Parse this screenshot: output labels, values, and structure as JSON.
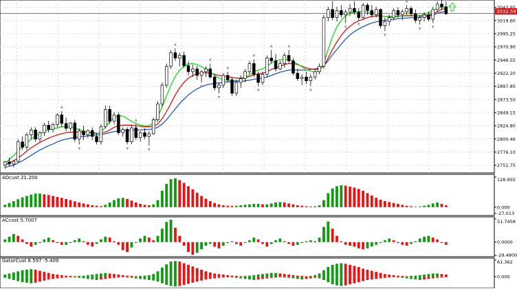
{
  "window": {
    "current_price": "3032.58",
    "colors": {
      "bull_candle": "#ffffff",
      "bear_candle": "#000000",
      "jaw": "#2255cc",
      "teeth": "#dd1111",
      "lips": "#11dd11",
      "price_line": "#dd1111",
      "osc_up": "#119911",
      "osc_down": "#ee1111",
      "arrow": "#22cc22"
    },
    "icons": [
      "fractal-up-arrow-icon",
      "fractal-down-arrow-icon",
      "buy-arrow-icon"
    ]
  },
  "main_axis": {
    "ticks": [
      "3043.95",
      "3019.60",
      "2995.25",
      "2970.90",
      "2946.55",
      "2922.20",
      "2897.85",
      "2873.50",
      "2849.15",
      "2824.80",
      "2800.46",
      "2776.10",
      "2751.75"
    ]
  },
  "panels": [
    {
      "id": "ac-osc",
      "label": "AOcust 21.200",
      "ticks": [
        "128.955",
        "0.000",
        "-27.013"
      ]
    },
    {
      "id": "ac-cust",
      "label": "ACcust 5.7007",
      "ticks": [
        "51.7458",
        "0.0000",
        "-29.4800"
      ]
    },
    {
      "id": "gator",
      "label": "GatorCust 8.597 -5.409",
      "ticks": [
        "61.362",
        "0.000"
      ]
    }
  ],
  "chart_data": {
    "type": "candlestick",
    "price_range": [
      2740,
      3055
    ],
    "candles": [
      [
        2752,
        2760,
        2745,
        2758
      ],
      [
        2758,
        2766,
        2750,
        2754
      ],
      [
        2754,
        2762,
        2748,
        2759
      ],
      [
        2759,
        2800,
        2757,
        2795
      ],
      [
        2795,
        2805,
        2780,
        2785
      ],
      [
        2785,
        2812,
        2780,
        2808
      ],
      [
        2808,
        2822,
        2800,
        2817
      ],
      [
        2817,
        2822,
        2795,
        2800
      ],
      [
        2800,
        2815,
        2795,
        2812
      ],
      [
        2812,
        2830,
        2806,
        2826
      ],
      [
        2826,
        2834,
        2812,
        2818
      ],
      [
        2818,
        2830,
        2812,
        2827
      ],
      [
        2827,
        2848,
        2822,
        2845
      ],
      [
        2845,
        2852,
        2822,
        2829
      ],
      [
        2829,
        2840,
        2815,
        2820
      ],
      [
        2820,
        2832,
        2815,
        2830
      ],
      [
        2830,
        2836,
        2795,
        2800
      ],
      [
        2800,
        2820,
        2790,
        2815
      ],
      [
        2815,
        2825,
        2798,
        2808
      ],
      [
        2808,
        2818,
        2802,
        2816
      ],
      [
        2816,
        2822,
        2798,
        2805
      ],
      [
        2805,
        2812,
        2790,
        2795
      ],
      [
        2795,
        2828,
        2790,
        2823
      ],
      [
        2823,
        2862,
        2820,
        2855
      ],
      [
        2855,
        2862,
        2828,
        2833
      ],
      [
        2833,
        2850,
        2828,
        2845
      ],
      [
        2845,
        2850,
        2808,
        2812
      ],
      [
        2812,
        2822,
        2805,
        2818
      ],
      [
        2818,
        2822,
        2790,
        2795
      ],
      [
        2795,
        2825,
        2791,
        2821
      ],
      [
        2821,
        2828,
        2798,
        2803
      ],
      [
        2803,
        2815,
        2795,
        2812
      ],
      [
        2812,
        2820,
        2800,
        2805
      ],
      [
        2805,
        2815,
        2788,
        2810
      ],
      [
        2810,
        2840,
        2808,
        2836
      ],
      [
        2836,
        2870,
        2832,
        2865
      ],
      [
        2865,
        2905,
        2860,
        2900
      ],
      [
        2900,
        2940,
        2895,
        2935
      ],
      [
        2935,
        2965,
        2930,
        2960
      ],
      [
        2960,
        2968,
        2945,
        2950
      ],
      [
        2950,
        2960,
        2935,
        2955
      ],
      [
        2955,
        2962,
        2932,
        2936
      ],
      [
        2936,
        2944,
        2918,
        2925
      ],
      [
        2925,
        2938,
        2915,
        2930
      ],
      [
        2930,
        2936,
        2910,
        2918
      ],
      [
        2918,
        2928,
        2905,
        2925
      ],
      [
        2925,
        2935,
        2915,
        2930
      ],
      [
        2930,
        2940,
        2912,
        2915
      ],
      [
        2915,
        2920,
        2890,
        2895
      ],
      [
        2895,
        2905,
        2885,
        2900
      ],
      [
        2900,
        2922,
        2895,
        2918
      ],
      [
        2918,
        2925,
        2905,
        2910
      ],
      [
        2910,
        2915,
        2880,
        2885
      ],
      [
        2885,
        2910,
        2880,
        2905
      ],
      [
        2905,
        2918,
        2895,
        2912
      ],
      [
        2912,
        2930,
        2905,
        2925
      ],
      [
        2925,
        2945,
        2920,
        2940
      ],
      [
        2940,
        2948,
        2915,
        2920
      ],
      [
        2920,
        2925,
        2898,
        2905
      ],
      [
        2905,
        2925,
        2900,
        2920
      ],
      [
        2920,
        2955,
        2915,
        2950
      ],
      [
        2950,
        2965,
        2940,
        2945
      ],
      [
        2945,
        2958,
        2925,
        2930
      ],
      [
        2930,
        2945,
        2928,
        2940
      ],
      [
        2940,
        2960,
        2932,
        2955
      ],
      [
        2955,
        2965,
        2940,
        2945
      ],
      [
        2945,
        2950,
        2918,
        2922
      ],
      [
        2922,
        2930,
        2908,
        2912
      ],
      [
        2912,
        2920,
        2900,
        2915
      ],
      [
        2915,
        2925,
        2902,
        2908
      ],
      [
        2908,
        2920,
        2898,
        2915
      ],
      [
        2915,
        2930,
        2910,
        2925
      ],
      [
        2925,
        2940,
        2920,
        2935
      ],
      [
        2935,
        3030,
        2930,
        3025
      ],
      [
        3025,
        3045,
        3018,
        3040
      ],
      [
        3040,
        3055,
        3020,
        3025
      ],
      [
        3025,
        3045,
        3018,
        3038
      ],
      [
        3038,
        3048,
        3025,
        3030
      ],
      [
        3030,
        3040,
        3015,
        3035
      ],
      [
        3035,
        3050,
        3028,
        3042
      ],
      [
        3042,
        3055,
        3030,
        3035
      ],
      [
        3035,
        3042,
        3020,
        3025
      ],
      [
        3025,
        3052,
        3022,
        3048
      ],
      [
        3048,
        3052,
        3030,
        3038
      ],
      [
        3038,
        3048,
        3025,
        3030
      ],
      [
        3030,
        3045,
        3025,
        3040
      ],
      [
        3040,
        3042,
        3005,
        3010
      ],
      [
        3010,
        3025,
        3000,
        3018
      ],
      [
        3018,
        3030,
        3010,
        3025
      ],
      [
        3025,
        3042,
        3020,
        3038
      ],
      [
        3038,
        3044,
        3025,
        3030
      ],
      [
        3030,
        3040,
        3020,
        3036
      ],
      [
        3036,
        3048,
        3030,
        3042
      ],
      [
        3042,
        3046,
        3028,
        3032
      ],
      [
        3032,
        3040,
        3015,
        3020
      ],
      [
        3020,
        3030,
        3012,
        3025
      ],
      [
        3025,
        3035,
        3018,
        3030
      ],
      [
        3030,
        3036,
        3018,
        3022
      ],
      [
        3022,
        3045,
        3015,
        3040
      ],
      [
        3040,
        3055,
        3035,
        3050
      ],
      [
        3050,
        3058,
        3040,
        3045
      ],
      [
        3045,
        3055,
        3030,
        3032
      ]
    ],
    "jaw": [
      2748,
      2750,
      2752,
      2756,
      2760,
      2765,
      2770,
      2775,
      2780,
      2784,
      2788,
      2791,
      2795,
      2798,
      2800,
      2802,
      2803,
      2804,
      2805,
      2806,
      2807,
      2808,
      2808,
      2810,
      2812,
      2814,
      2815,
      2816,
      2816,
      2817,
      2817,
      2817,
      2818,
      2818,
      2819,
      2822,
      2828,
      2836,
      2846,
      2856,
      2866,
      2874,
      2882,
      2888,
      2893,
      2897,
      2900,
      2902,
      2903,
      2904,
      2905,
      2906,
      2906,
      2907,
      2907,
      2908,
      2909,
      2911,
      2912,
      2913,
      2915,
      2918,
      2921,
      2924,
      2926,
      2928,
      2928,
      2928,
      2928,
      2928,
      2929,
      2930,
      2932,
      2936,
      2945,
      2956,
      2966,
      2976,
      2985,
      2993,
      2999,
      3004,
      3008,
      3012,
      3015,
      3017,
      3019,
      3020,
      3021,
      3022,
      3023,
      3024,
      3024,
      3025,
      3025,
      3026,
      3027,
      3028,
      3030,
      3033,
      3035,
      3036
    ],
    "teeth": [
      2752,
      2756,
      2760,
      2765,
      2771,
      2778,
      2784,
      2789,
      2794,
      2798,
      2802,
      2805,
      2808,
      2810,
      2812,
      2813,
      2813,
      2813,
      2813,
      2813,
      2812,
      2811,
      2811,
      2813,
      2817,
      2822,
      2825,
      2826,
      2826,
      2826,
      2825,
      2824,
      2823,
      2823,
      2824,
      2828,
      2838,
      2851,
      2866,
      2882,
      2895,
      2905,
      2913,
      2918,
      2921,
      2923,
      2923,
      2922,
      2920,
      2918,
      2917,
      2916,
      2914,
      2913,
      2913,
      2914,
      2916,
      2919,
      2921,
      2922,
      2925,
      2929,
      2932,
      2935,
      2938,
      2940,
      2940,
      2938,
      2935,
      2932,
      2930,
      2929,
      2930,
      2935,
      2950,
      2966,
      2980,
      2992,
      3002,
      3009,
      3015,
      3019,
      3022,
      3025,
      3027,
      3028,
      3028,
      3027,
      3027,
      3027,
      3028,
      3028,
      3029,
      3029,
      3029,
      3029,
      3029,
      3030,
      3032,
      3036,
      3040,
      3042
    ],
    "lips": [
      2756,
      2762,
      2770,
      2778,
      2786,
      2793,
      2800,
      2806,
      2810,
      2814,
      2817,
      2819,
      2821,
      2823,
      2823,
      2822,
      2820,
      2818,
      2815,
      2812,
      2810,
      2810,
      2813,
      2822,
      2832,
      2840,
      2843,
      2843,
      2838,
      2833,
      2829,
      2826,
      2825,
      2825,
      2830,
      2842,
      2860,
      2880,
      2900,
      2916,
      2928,
      2935,
      2939,
      2940,
      2938,
      2934,
      2930,
      2925,
      2918,
      2913,
      2910,
      2909,
      2908,
      2908,
      2910,
      2914,
      2919,
      2925,
      2928,
      2930,
      2935,
      2941,
      2945,
      2947,
      2948,
      2947,
      2944,
      2939,
      2934,
      2929,
      2926,
      2924,
      2927,
      2940,
      2966,
      2990,
      3008,
      3020,
      3028,
      3033,
      3035,
      3036,
      3036,
      3035,
      3034,
      3032,
      3029,
      3027,
      3026,
      3026,
      3027,
      3028,
      3028,
      3028,
      3028,
      3029,
      3031,
      3034,
      3038,
      3042,
      3044,
      3044
    ],
    "ao": [
      10,
      18,
      26,
      34,
      42,
      48,
      54,
      58,
      58,
      55,
      52,
      48,
      44,
      40,
      35,
      30,
      25,
      20,
      16,
      12,
      8,
      6,
      4,
      10,
      20,
      30,
      38,
      40,
      35,
      28,
      20,
      14,
      10,
      8,
      12,
      30,
      70,
      100,
      120,
      124,
      116,
      104,
      90,
      76,
      62,
      48,
      36,
      26,
      18,
      12,
      8,
      6,
      5,
      6,
      8,
      10,
      12,
      14,
      14,
      12,
      12,
      16,
      20,
      22,
      20,
      16,
      12,
      8,
      6,
      4,
      3,
      4,
      8,
      30,
      60,
      80,
      90,
      94,
      92,
      88,
      84,
      78,
      70,
      60,
      50,
      40,
      32,
      26,
      22,
      18,
      14,
      10,
      6,
      4,
      2,
      3,
      6,
      10,
      16,
      20,
      14,
      8
    ],
    "ac": [
      6,
      12,
      18,
      14,
      6,
      -4,
      -10,
      -6,
      -2,
      6,
      10,
      4,
      -2,
      -6,
      -6,
      -2,
      4,
      8,
      2,
      -6,
      -10,
      -4,
      6,
      12,
      10,
      2,
      -6,
      -18,
      -22,
      -12,
      -2,
      8,
      14,
      10,
      4,
      14,
      30,
      45,
      50,
      32,
      14,
      -8,
      -22,
      -28,
      -24,
      -16,
      -8,
      -4,
      -10,
      -14,
      -8,
      -2,
      2,
      -4,
      -8,
      -2,
      4,
      10,
      6,
      -4,
      -10,
      -4,
      4,
      8,
      2,
      -4,
      -8,
      -6,
      -2,
      2,
      4,
      2,
      10,
      34,
      46,
      30,
      14,
      2,
      -6,
      -8,
      -10,
      -14,
      -16,
      -14,
      -10,
      -6,
      -2,
      4,
      8,
      4,
      -2,
      -6,
      -8,
      -4,
      2,
      8,
      12,
      14,
      10,
      6,
      -2,
      -6
    ],
    "gator_upper": [
      8,
      12,
      16,
      20,
      24,
      26,
      28,
      26,
      22,
      18,
      14,
      10,
      8,
      6,
      4,
      3,
      2,
      3,
      4,
      6,
      8,
      10,
      12,
      14,
      12,
      10,
      8,
      6,
      4,
      3,
      2,
      3,
      4,
      6,
      10,
      20,
      34,
      46,
      56,
      58,
      56,
      50,
      44,
      38,
      32,
      26,
      20,
      16,
      12,
      10,
      8,
      6,
      4,
      3,
      2,
      3,
      4,
      6,
      8,
      10,
      12,
      14,
      14,
      12,
      10,
      8,
      6,
      4,
      3,
      2,
      3,
      6,
      12,
      24,
      36,
      44,
      48,
      50,
      48,
      44,
      40,
      36,
      30,
      26,
      22,
      18,
      14,
      10,
      8,
      6,
      4,
      3,
      2,
      3,
      4,
      6,
      8,
      10,
      12,
      12,
      10,
      8
    ],
    "gator_lower": [
      -4,
      -8,
      -12,
      -16,
      -20,
      -22,
      -24,
      -22,
      -18,
      -14,
      -10,
      -8,
      -6,
      -4,
      -3,
      -2,
      -3,
      -4,
      -6,
      -8,
      -10,
      -12,
      -10,
      -8,
      -6,
      -4,
      -3,
      -2,
      -3,
      -4,
      -6,
      -8,
      -10,
      -12,
      -14,
      -18,
      -24,
      -30,
      -34,
      -36,
      -34,
      -30,
      -26,
      -22,
      -18,
      -14,
      -10,
      -8,
      -6,
      -4,
      -3,
      -2,
      -3,
      -4,
      -6,
      -8,
      -10,
      -12,
      -10,
      -8,
      -6,
      -4,
      -3,
      -2,
      -3,
      -4,
      -6,
      -8,
      -10,
      -8,
      -6,
      -4,
      -6,
      -12,
      -20,
      -28,
      -32,
      -34,
      -32,
      -28,
      -24,
      -20,
      -16,
      -12,
      -10,
      -8,
      -6,
      -4,
      -3,
      -2,
      -3,
      -4,
      -6,
      -8,
      -10,
      -12,
      -10,
      -8,
      -6,
      -4,
      -3,
      -2
    ]
  }
}
